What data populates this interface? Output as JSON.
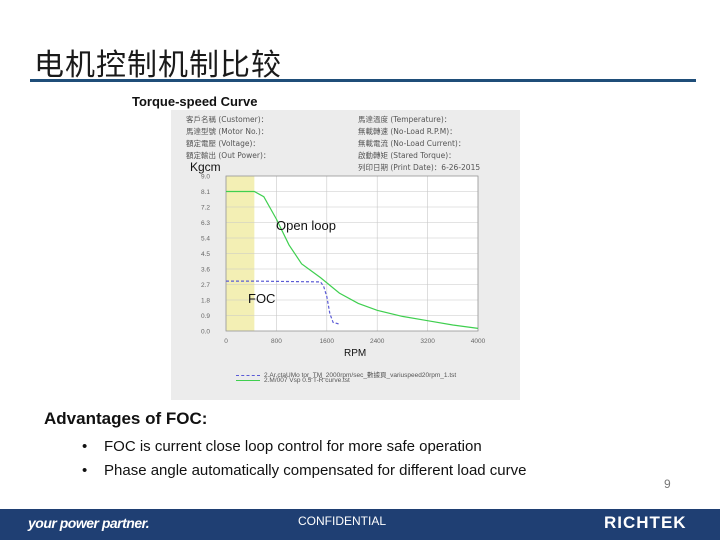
{
  "slide": {
    "title": "电机控制机制比较",
    "caption": "Torque-speed Curve",
    "page_number": "9"
  },
  "chart_header": {
    "left": [
      "客戶名稱 (Customer)：",
      "馬達型號 (Motor No.)：",
      "額定電壓 (Voltage)：",
      "額定輸出 (Out Power)："
    ],
    "right": [
      "馬達溫度 (Temperature)：",
      "無載轉速 (No-Load R.P.M)：",
      "無載電流 (No-Load Current)：",
      "啟動轉矩 (Stared Torque)：",
      "列印日期 (Print Date)：6-26-2015"
    ]
  },
  "chart_data": {
    "type": "line",
    "ylabel": "Kgcm",
    "xlabel": "RPM",
    "x_ticks": [
      "0",
      "800",
      "1600",
      "2400",
      "3200",
      "4000"
    ],
    "y_ticks": [
      "9.0",
      "8.1",
      "7.2",
      "6.3",
      "5.4",
      "4.5",
      "3.6",
      "2.7",
      "1.8",
      "0.9",
      "0.0"
    ],
    "xlim": [
      0,
      4000
    ],
    "ylim": [
      0,
      9
    ],
    "grid": true,
    "shaded_region": [
      0,
      450
    ],
    "colors": {
      "plot_bg": "#ffffff",
      "shade": "#f3efb4",
      "grid": "#c8c8c8",
      "foc": "#5b5bd6",
      "open_loop": "#3fcf4f"
    },
    "series": [
      {
        "name": "2.Ar.ctaUMo tor_TM_2000rpm/sec_數據頁_variuspeed20rpm_1.tst",
        "color": "#5b5bd6",
        "style": "dashed",
        "points": [
          [
            0,
            2.9
          ],
          [
            450,
            2.9
          ],
          [
            1500,
            2.85
          ],
          [
            1550,
            2.6
          ],
          [
            1600,
            2.0
          ],
          [
            1650,
            1.0
          ],
          [
            1700,
            0.5
          ],
          [
            1800,
            0.4
          ]
        ]
      },
      {
        "name": "2.M/007 Vsp 0.5 T-R curve.tst",
        "color": "#3fcf4f",
        "style": "solid",
        "points": [
          [
            0,
            8.1
          ],
          [
            450,
            8.1
          ],
          [
            600,
            7.8
          ],
          [
            800,
            6.5
          ],
          [
            1000,
            5.0
          ],
          [
            1200,
            3.9
          ],
          [
            1500,
            3.1
          ],
          [
            1800,
            2.2
          ],
          [
            2100,
            1.6
          ],
          [
            2400,
            1.2
          ],
          [
            2800,
            0.85
          ],
          [
            3200,
            0.6
          ],
          [
            3600,
            0.35
          ],
          [
            4000,
            0.15
          ]
        ]
      }
    ]
  },
  "annotations": {
    "open_loop": "Open loop",
    "foc": "FOC"
  },
  "advantages": {
    "title": "Advantages of FOC:",
    "items": [
      "FOC is current close loop control for more safe operation",
      "Phase angle automatically compensated for different load curve"
    ]
  },
  "footer": {
    "tagline": "your power partner.",
    "confidential": "CONFIDENTIAL",
    "logo": "RICHTEK"
  }
}
